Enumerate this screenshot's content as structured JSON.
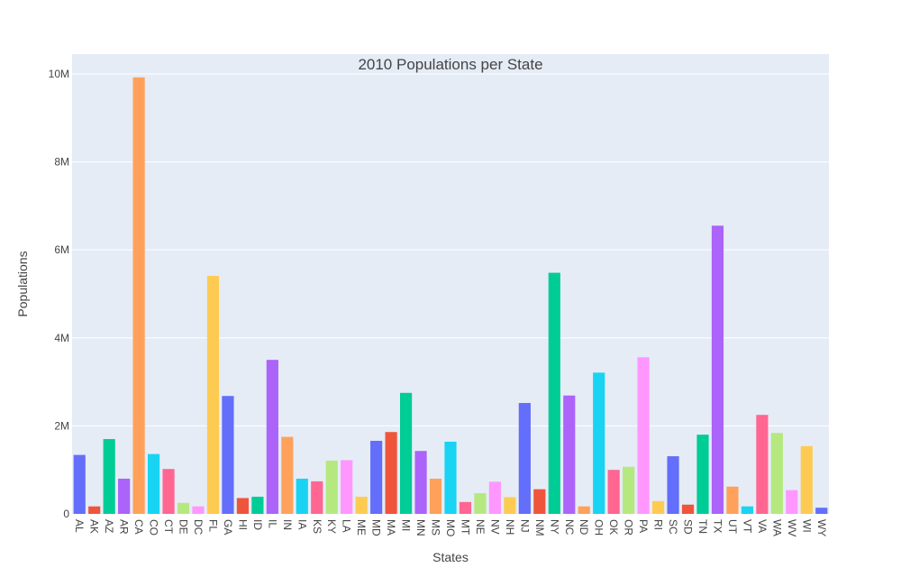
{
  "chart_data": {
    "type": "bar",
    "title": "2010 Populations per State",
    "xlabel": "States",
    "ylabel": "Populations",
    "ylim": [
      0,
      10450000
    ],
    "y_ticks": [
      0,
      2000000,
      4000000,
      6000000,
      8000000,
      10000000
    ],
    "y_tick_labels": [
      "0",
      "2M",
      "4M",
      "6M",
      "8M",
      "10M"
    ],
    "grid": true,
    "background": "#e5ecf6",
    "palette": [
      "#636efa",
      "#ef553b",
      "#00cc96",
      "#ab63fa",
      "#ffa15a",
      "#19d3f3",
      "#ff6692",
      "#b6e880",
      "#ff97ff",
      "#fecb52"
    ],
    "categories": [
      "AL",
      "AK",
      "AZ",
      "AR",
      "CA",
      "CO",
      "CT",
      "DE",
      "DC",
      "FL",
      "GA",
      "HI",
      "ID",
      "IL",
      "IN",
      "IA",
      "KS",
      "KY",
      "LA",
      "ME",
      "MD",
      "MA",
      "MI",
      "MN",
      "MS",
      "MO",
      "MT",
      "NE",
      "NV",
      "NH",
      "NJ",
      "NM",
      "NY",
      "NC",
      "ND",
      "OH",
      "OK",
      "OR",
      "PA",
      "RI",
      "SC",
      "SD",
      "TN",
      "TX",
      "UT",
      "VT",
      "VA",
      "WA",
      "WV",
      "WI",
      "WY"
    ],
    "values": [
      1340000,
      170000,
      1700000,
      800000,
      9920000,
      1360000,
      1020000,
      250000,
      170000,
      5410000,
      2680000,
      360000,
      390000,
      3500000,
      1750000,
      800000,
      740000,
      1210000,
      1220000,
      390000,
      1660000,
      1860000,
      2750000,
      1430000,
      800000,
      1640000,
      270000,
      470000,
      730000,
      380000,
      2520000,
      560000,
      5480000,
      2690000,
      170000,
      3210000,
      1000000,
      1070000,
      3560000,
      290000,
      1310000,
      210000,
      1800000,
      6550000,
      620000,
      170000,
      2250000,
      1840000,
      540000,
      1540000,
      140000
    ]
  }
}
